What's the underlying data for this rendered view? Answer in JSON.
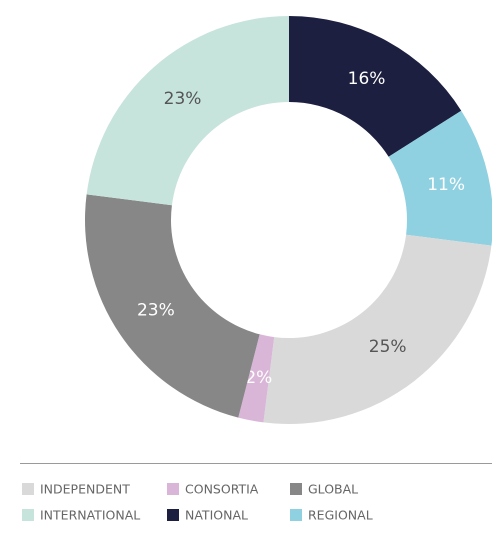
{
  "chart_data": {
    "type": "donut",
    "categories": [
      "INDEPENDENT",
      "CONSORTIA",
      "GLOBAL",
      "INTERNATIONAL",
      "NATIONAL",
      "REGIONAL"
    ],
    "values": [
      25,
      2,
      23,
      23,
      16,
      11
    ],
    "value_labels": [
      "25%",
      "2%",
      "23%",
      "23%",
      "16%",
      "11%"
    ],
    "colors": [
      "#d9d9d9",
      "#d9b6d8",
      "#878787",
      "#c6e3dc",
      "#1c1f3f",
      "#8fd1e0"
    ],
    "label_colors": [
      "#555555",
      "#ffffff",
      "#ffffff",
      "#555555",
      "#ffffff",
      "#ffffff"
    ],
    "legend": "bottom"
  }
}
